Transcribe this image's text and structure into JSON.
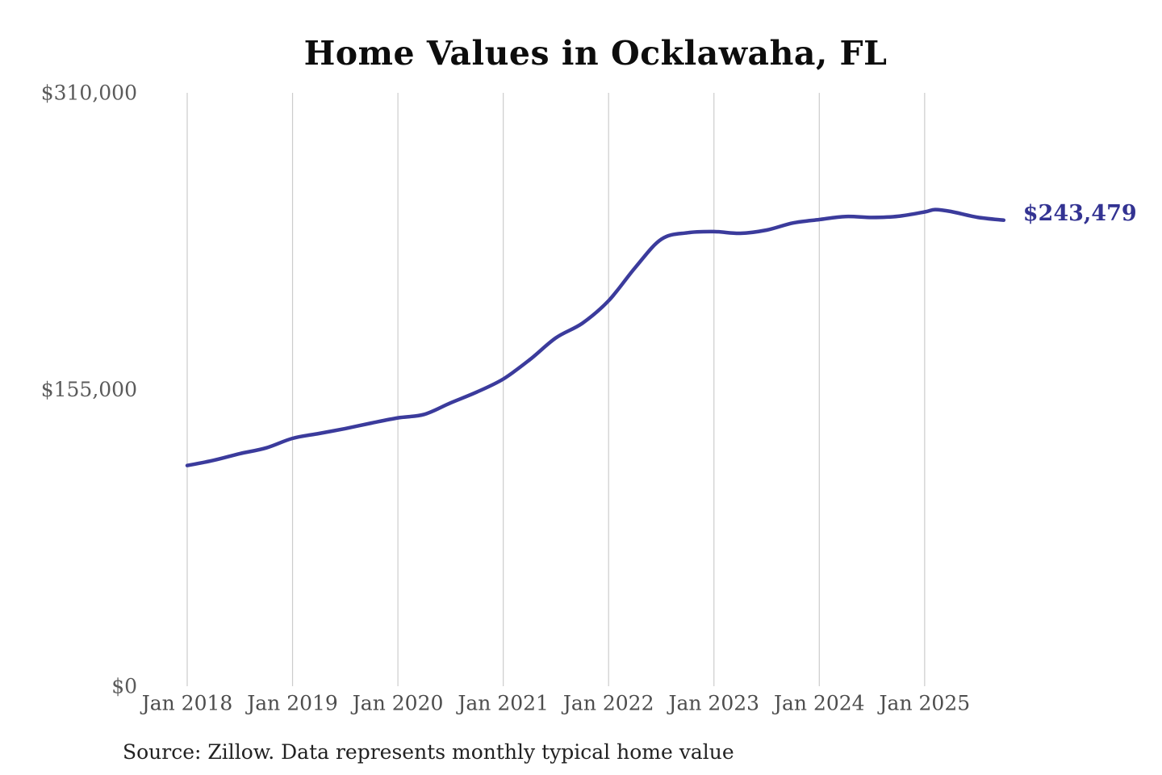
{
  "title": "Home Values in Ocklawaha, FL",
  "source_note": "Source: Zillow. Data represents monthly typical home value",
  "colors": {
    "background": "#ffffff",
    "line": "#3b3b9c",
    "end_label": "#333392",
    "gridline": "#cccccc",
    "title_text": "#0d0d0d",
    "x_tick_text": "#4d4d4d",
    "y_tick_text": "#5a5a5a",
    "source_text": "#222222"
  },
  "chart_data": {
    "type": "line",
    "title": "Home Values in Ocklawaha, FL",
    "xlabel": "",
    "ylabel": "",
    "ylim": [
      0,
      310000
    ],
    "xlim": [
      2018.0,
      2025.75
    ],
    "grid": "vertical-only",
    "legend": "none",
    "annotation": "$243,479",
    "end_value": 243479,
    "x_ticks": [
      {
        "year": 2018,
        "label": "Jan 2018"
      },
      {
        "year": 2019,
        "label": "Jan 2019"
      },
      {
        "year": 2020,
        "label": "Jan 2020"
      },
      {
        "year": 2021,
        "label": "Jan 2021"
      },
      {
        "year": 2022,
        "label": "Jan 2022"
      },
      {
        "year": 2023,
        "label": "Jan 2023"
      },
      {
        "year": 2024,
        "label": "Jan 2024"
      },
      {
        "year": 2025,
        "label": "Jan 2025"
      }
    ],
    "y_ticks": [
      {
        "value": 0,
        "label": "$0"
      },
      {
        "value": 155000,
        "label": "$155,000"
      },
      {
        "value": 310000,
        "label": "$310,000"
      }
    ],
    "series": [
      {
        "name": "Monthly typical home value",
        "points": [
          [
            2018.0,
            115300
          ],
          [
            2018.25,
            118000
          ],
          [
            2018.5,
            121500
          ],
          [
            2018.75,
            124500
          ],
          [
            2019.0,
            129500
          ],
          [
            2019.25,
            132000
          ],
          [
            2019.5,
            134600
          ],
          [
            2019.75,
            137500
          ],
          [
            2020.0,
            140200
          ],
          [
            2020.25,
            142000
          ],
          [
            2020.5,
            148000
          ],
          [
            2020.75,
            153700
          ],
          [
            2021.0,
            160500
          ],
          [
            2021.25,
            170500
          ],
          [
            2021.5,
            182000
          ],
          [
            2021.75,
            189600
          ],
          [
            2022.0,
            201400
          ],
          [
            2022.25,
            218500
          ],
          [
            2022.5,
            233500
          ],
          [
            2022.75,
            236900
          ],
          [
            2023.0,
            237500
          ],
          [
            2023.25,
            236600
          ],
          [
            2023.5,
            238300
          ],
          [
            2023.75,
            242000
          ],
          [
            2024.0,
            243800
          ],
          [
            2024.25,
            245400
          ],
          [
            2024.5,
            244900
          ],
          [
            2024.75,
            245500
          ],
          [
            2025.0,
            247800
          ],
          [
            2025.1,
            249000
          ],
          [
            2025.25,
            248000
          ],
          [
            2025.5,
            245000
          ],
          [
            2025.75,
            243479
          ]
        ]
      }
    ]
  }
}
